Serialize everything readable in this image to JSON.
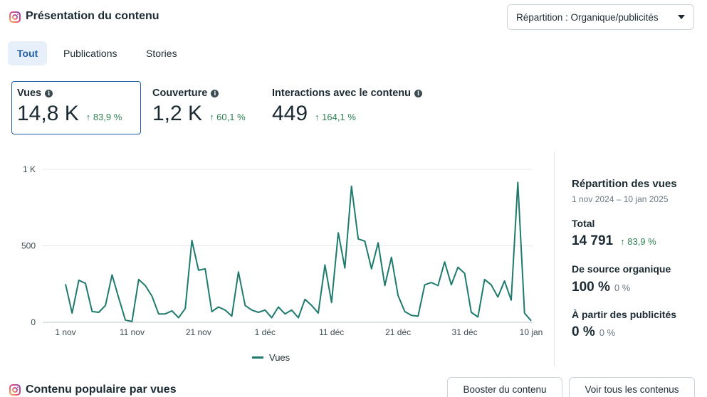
{
  "header": {
    "title": "Présentation du contenu",
    "dropdown_label": "Répartition : Organique/publicités"
  },
  "tabs": [
    {
      "label": "Tout",
      "active": true
    },
    {
      "label": "Publications",
      "active": false
    },
    {
      "label": "Stories",
      "active": false
    }
  ],
  "metrics": [
    {
      "label": "Vues",
      "value": "14,8 K",
      "delta": "↑ 83,9 %"
    },
    {
      "label": "Couverture",
      "value": "1,2 K",
      "delta": "↑ 60,1 %"
    },
    {
      "label": "Interactions avec le contenu",
      "value": "449",
      "delta": "↑ 164,1 %"
    }
  ],
  "chart_data": {
    "type": "line",
    "title": "",
    "xlabel": "",
    "ylabel": "",
    "ylim": [
      0,
      1000
    ],
    "y_ticks": [
      "0",
      "500",
      "1 K"
    ],
    "y_tick_values": [
      0,
      500,
      1000
    ],
    "x_ticks": [
      "1 nov",
      "11 nov",
      "21 nov",
      "1 déc",
      "11 déc",
      "21 déc",
      "31 déc",
      "10 jan"
    ],
    "x_tick_days": [
      0,
      10,
      20,
      30,
      40,
      50,
      60,
      70
    ],
    "legend": [
      "Vues"
    ],
    "color": "#1f7a6e",
    "series": [
      {
        "name": "Vues",
        "values": [
          250,
          60,
          275,
          255,
          70,
          65,
          110,
          310,
          160,
          15,
          5,
          280,
          240,
          170,
          55,
          55,
          75,
          30,
          90,
          535,
          340,
          350,
          70,
          100,
          80,
          40,
          330,
          110,
          80,
          65,
          80,
          30,
          100,
          55,
          80,
          30,
          150,
          110,
          60,
          375,
          130,
          585,
          355,
          890,
          545,
          530,
          350,
          520,
          240,
          425,
          175,
          70,
          45,
          40,
          245,
          260,
          240,
          395,
          245,
          360,
          320,
          65,
          35,
          280,
          245,
          165,
          270,
          145,
          915,
          60,
          10
        ]
      }
    ]
  },
  "side_panel": {
    "title": "Répartition des vues",
    "date_range": "1 nov 2024 – 10 jan 2025",
    "total_label": "Total",
    "total_value": "14 791",
    "total_delta": "↑ 83,9 %",
    "organic_label": "De source organique",
    "organic_value": "100 %",
    "organic_delta": "0 %",
    "ads_label": "À partir des publicités",
    "ads_value": "0 %",
    "ads_delta": "0 %"
  },
  "bottom": {
    "title": "Contenu populaire par vues",
    "boost_label": "Booster du contenu",
    "see_all_label": "Voir tous les contenus"
  }
}
